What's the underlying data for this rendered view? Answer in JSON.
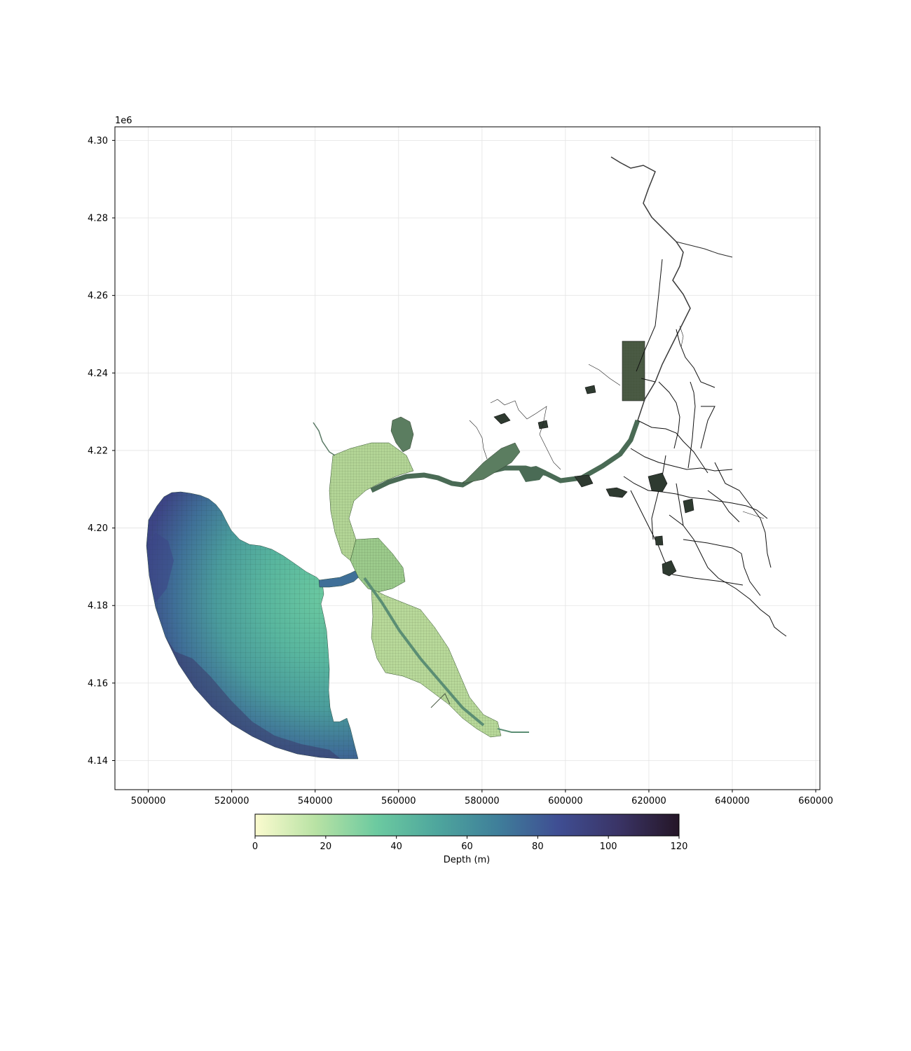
{
  "map": {
    "offset_label": "1e6",
    "x_range": [
      492000,
      661000
    ],
    "y_range": [
      4132500,
      4303500
    ],
    "x_ticks": [
      500000,
      520000,
      540000,
      560000,
      580000,
      600000,
      620000,
      640000,
      660000
    ],
    "x_tick_labels": [
      "500000",
      "520000",
      "540000",
      "560000",
      "580000",
      "600000",
      "620000",
      "640000",
      "660000"
    ],
    "y_ticks": [
      4140000,
      4160000,
      4180000,
      4200000,
      4220000,
      4240000,
      4260000,
      4280000,
      4300000
    ],
    "y_tick_labels": [
      "4.14",
      "4.16",
      "4.18",
      "4.20",
      "4.22",
      "4.24",
      "4.26",
      "4.28",
      "4.30"
    ],
    "grid": true
  },
  "colorbar": {
    "label": "Depth (m)",
    "range": [
      0,
      120
    ],
    "ticks": [
      0,
      20,
      40,
      60,
      80,
      100,
      120
    ],
    "tick_labels": [
      "0",
      "20",
      "40",
      "60",
      "80",
      "100",
      "120"
    ],
    "colormap": [
      "#fbfbcf",
      "#b8e2a4",
      "#6ccaa0",
      "#4ea69d",
      "#3f7f9a",
      "#3f4e93",
      "#3a3466",
      "#251627"
    ]
  },
  "colors": {
    "ocean_shallow": "#6ccaa0",
    "ocean_mid": "#4ea69d",
    "ocean_deep": "#3f4e93",
    "bay_shallow": "#b8d99a",
    "bay_channel": "#5b8e74",
    "delta_channel": "#3f5e49",
    "delta_lines": "#1a1a1a"
  }
}
